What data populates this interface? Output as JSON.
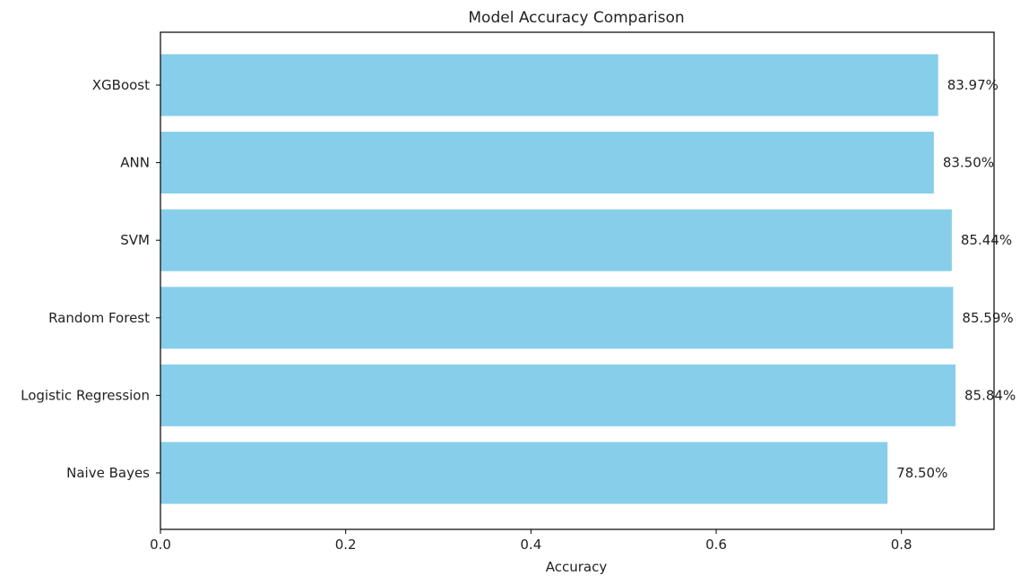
{
  "chart_data": {
    "type": "bar",
    "orientation": "horizontal",
    "title": "Model Accuracy Comparison",
    "xlabel": "Accuracy",
    "ylabel": "",
    "categories": [
      "XGBoost",
      "ANN",
      "SVM",
      "Random Forest",
      "Logistic Regression",
      "Naive Bayes"
    ],
    "values": [
      0.8397,
      0.835,
      0.8544,
      0.8559,
      0.8584,
      0.785
    ],
    "data_labels": [
      "83.97%",
      "83.50%",
      "85.44%",
      "85.59%",
      "85.84%",
      "78.50%"
    ],
    "xlim": [
      0,
      0.9
    ],
    "xticks": [
      0.0,
      0.2,
      0.4,
      0.6,
      0.8
    ],
    "xtick_labels": [
      "0.0",
      "0.2",
      "0.4",
      "0.6",
      "0.8"
    ],
    "grid": false,
    "legend": "none",
    "bar_color": "#87CEEB",
    "axis_color": "#000000"
  }
}
